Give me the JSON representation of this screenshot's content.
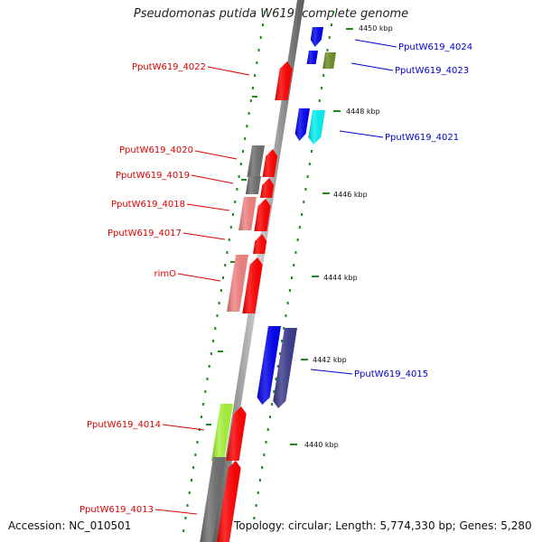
{
  "title": "Pseudomonas putida W619, complete genome",
  "accession_text": "Accession: NC_010501",
  "topology_text": "Topology: circular; Length: 5,774,330 bp; Genes: 5,280",
  "colors": {
    "label_left": "#dd0000",
    "label_right": "#0000cc",
    "backbone": "#8c8c8c",
    "tick": "#1a8a1a",
    "red": "#ff0000",
    "pink": "#f08080",
    "gray": "#6e6e6e",
    "blue": "#0000ee",
    "navy": "#3a3a8c",
    "cyan": "#00f0f0",
    "olive": "#6b8e23",
    "lime": "#a6f23a"
  },
  "scale_labels": [
    "4450 kbp",
    "4448 kbp",
    "4446 kbp",
    "4444 kbp",
    "4442 kbp",
    "4440 kbp"
  ],
  "left_labels": [
    "PputW619_4022",
    "PputW619_4020",
    "PputW619_4019",
    "PputW619_4018",
    "PputW619_4017",
    "rimO",
    "PputW619_4014",
    "PputW619_4013"
  ],
  "right_labels": [
    "PputW619_4024",
    "PputW619_4023",
    "PputW619_4021",
    "PputW619_4015"
  ]
}
